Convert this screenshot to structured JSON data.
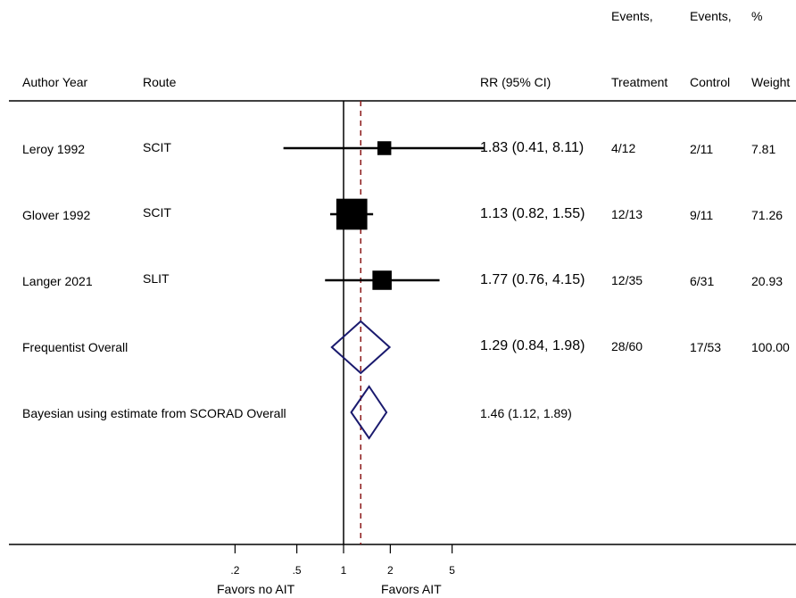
{
  "header": {
    "events_treatment_line1": "Events,",
    "events_control_line1": "Events,",
    "weight_line1": "%",
    "author": "Author Year",
    "route": "Route",
    "rr": "RR (95% CI)",
    "treatment": "Treatment",
    "control": "Control",
    "weight": "Weight"
  },
  "footer": {
    "favors_left": "Favors no AIT",
    "favors_right": "Favors AIT"
  },
  "chart_data": {
    "type": "forest",
    "scale": "log",
    "xlim": [
      0.1,
      10
    ],
    "x_ticks": [
      {
        "value": 0.2,
        "label": ".2"
      },
      {
        "value": 0.5,
        "label": ".5"
      },
      {
        "value": 1,
        "label": "1"
      },
      {
        "value": 2,
        "label": "2"
      },
      {
        "value": 5,
        "label": "5"
      }
    ],
    "null_line": 1,
    "overall_line": 1.29,
    "colors": {
      "study": "#000000",
      "diamond": "#1a1a6e",
      "overall_line": "#8b1a1a"
    },
    "studies": [
      {
        "author": "Leroy 1992",
        "route": "SCIT",
        "rr": 1.83,
        "lo": 0.41,
        "hi": 8.11,
        "rr_text": "1.83 (0.41, 8.11)",
        "treatment": "4/12",
        "control": "2/11",
        "weight": "7.81",
        "weight_value": 7.81
      },
      {
        "author": "Glover 1992",
        "route": "SCIT",
        "rr": 1.13,
        "lo": 0.82,
        "hi": 1.55,
        "rr_text": "1.13 (0.82, 1.55)",
        "treatment": "12/13",
        "control": "9/11",
        "weight": "71.26",
        "weight_value": 71.26
      },
      {
        "author": "Langer 2021",
        "route": "SLIT",
        "rr": 1.77,
        "lo": 0.76,
        "hi": 4.15,
        "rr_text": "1.77 (0.76, 4.15)",
        "treatment": "12/35",
        "control": "6/31",
        "weight": "20.93",
        "weight_value": 20.93
      }
    ],
    "overall": [
      {
        "label": "Frequentist Overall",
        "rr": 1.29,
        "lo": 0.84,
        "hi": 1.98,
        "rr_text": "1.29 (0.84, 1.98)",
        "treatment": "28/60",
        "control": "17/53",
        "weight": "100.00"
      },
      {
        "label": "Bayesian using estimate from SCORAD Overall",
        "rr": 1.46,
        "lo": 1.12,
        "hi": 1.89,
        "rr_text": "1.46 (1.12, 1.89)"
      }
    ]
  }
}
